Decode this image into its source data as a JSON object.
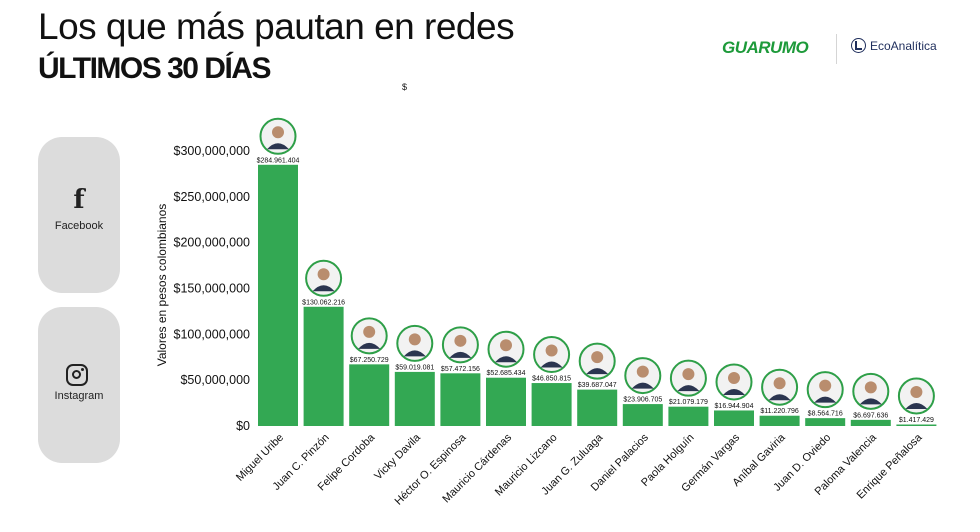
{
  "header": {
    "title": "Los que más pautan en redes",
    "subtitle": "ÚLTIMOS 30 DÍAS",
    "currency_note": "$"
  },
  "brands": {
    "guarumo": "GUARUMO",
    "ecoanalitica": "EcoAnalítica"
  },
  "social": {
    "facebook_label": "Facebook",
    "instagram_label": "Instagram"
  },
  "colors": {
    "bar": "#33a853",
    "avatar_ring": "#2e9f48",
    "card_bg": "#dcdcdc"
  },
  "chart_data": {
    "type": "bar",
    "title": "Los que más pautan en redes",
    "subtitle": "ÚLTIMOS 30 DÍAS",
    "ylabel": "Valores en pesos colombianos",
    "xlabel": "",
    "ylim": [
      0,
      300000000
    ],
    "yticks": [
      {
        "value": 0,
        "label": "$0"
      },
      {
        "value": 50000000,
        "label": "$50,000,000"
      },
      {
        "value": 100000000,
        "label": "$100,000,000"
      },
      {
        "value": 150000000,
        "label": "$150,000,000"
      },
      {
        "value": 200000000,
        "label": "$200,000,000"
      },
      {
        "value": 250000000,
        "label": "$250,000,000"
      },
      {
        "value": 300000000,
        "label": "$300,000,000"
      }
    ],
    "categories": [
      "Miguel Uribe",
      "Juan C. Pinzón",
      "Felipe Cordoba",
      "Vicky Davila",
      "Héctor O. Espinosa",
      "Mauricio Cárdenas",
      "Mauricio Lizcano",
      "Juan G. Zuluaga",
      "Daniel Palacios",
      "Paola Holguín",
      "Germán Vargas",
      "Aníbal Gaviria",
      "Juan D. Oviedo",
      "Paloma Valencia",
      "Enrique Peñalosa"
    ],
    "values": [
      284961404,
      130062216,
      67250729,
      59019081,
      57472156,
      52685434,
      46850815,
      39687047,
      23906705,
      21079179,
      16944904,
      11220796,
      8564716,
      6697636,
      1417429
    ],
    "value_labels": [
      "$284.961.404",
      "$130.062.216",
      "$67.250.729",
      "$59.019.081",
      "$57.472.156",
      "$52.685.434",
      "$46.850.815",
      "$39.687.047",
      "$23.906.705",
      "$21.079.179",
      "$16.944.904",
      "$11.220.796",
      "$8.564.716",
      "$6.697.636",
      "$1.417.429"
    ],
    "grid": false,
    "legend": "none"
  }
}
